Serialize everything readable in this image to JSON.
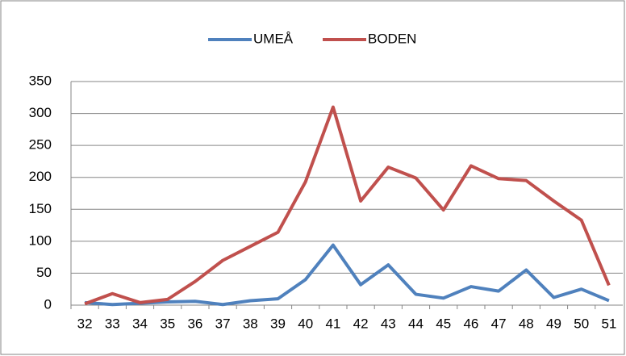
{
  "chart_data": {
    "type": "line",
    "categories": [
      "32",
      "33",
      "34",
      "35",
      "36",
      "37",
      "38",
      "39",
      "40",
      "41",
      "42",
      "43",
      "44",
      "45",
      "46",
      "47",
      "48",
      "49",
      "50",
      "51"
    ],
    "series": [
      {
        "name": "UMEÅ",
        "color": "#4f81bd",
        "values": [
          4,
          1,
          3,
          5,
          6,
          1,
          7,
          10,
          40,
          94,
          32,
          63,
          17,
          11,
          29,
          22,
          55,
          12,
          25,
          7
        ]
      },
      {
        "name": "BODEN",
        "color": "#c0504d",
        "values": [
          2,
          18,
          4,
          9,
          37,
          70,
          92,
          114,
          193,
          310,
          163,
          216,
          199,
          149,
          218,
          198,
          195,
          163,
          133,
          31
        ]
      }
    ],
    "ylim": [
      0,
      350
    ],
    "yticks": [
      0,
      50,
      100,
      150,
      200,
      250,
      300,
      350
    ],
    "grid": true,
    "legend": "top"
  }
}
